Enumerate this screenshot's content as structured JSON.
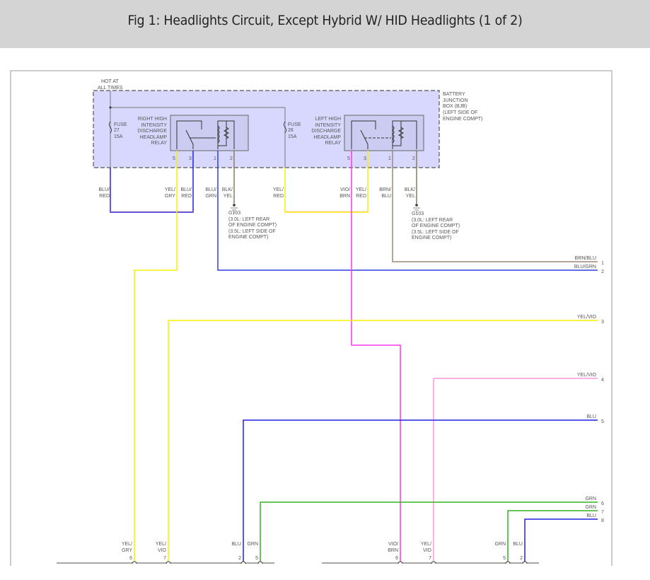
{
  "header": {
    "title": "Fig 1: Headlights Circuit, Except Hybrid W/ HID Headlights (1 of 2)"
  },
  "diagram": {
    "hot_at": [
      "HOT AT",
      "ALL TIMES"
    ],
    "bjb": [
      "BATTERY",
      "JUNCTION",
      "BOX (BJB)",
      "(LEFT SIDE OF",
      "ENGINE COMPT)"
    ],
    "fuse27": [
      "FUSE",
      "27",
      "15A"
    ],
    "fuse26": [
      "FUSE",
      "26",
      "15A"
    ],
    "right_relay": [
      "RIGHT HIGH",
      "INTENSITY",
      "DISCHARGE",
      "HEADLAMP",
      "RELAY"
    ],
    "left_relay": [
      "LEFT HIGH",
      "INTENSITY",
      "DISCHARGE",
      "HEADLAMP",
      "RELAY"
    ],
    "relay_pins": [
      "5",
      "3",
      "1",
      "2"
    ],
    "wire_labels_top": [
      [
        "BLU/",
        "RED"
      ],
      [
        "YEL/",
        "GRY"
      ],
      [
        "BLU/",
        "RED"
      ],
      [
        "BLU/",
        "GRN"
      ],
      [
        "BLK/",
        "YEL"
      ],
      [
        "YEL/",
        "RED"
      ],
      [
        "VIO/",
        "BRN"
      ],
      [
        "YEL/",
        "RED"
      ],
      [
        "BRN/",
        "BLU"
      ],
      [
        "BLK/",
        "YEL"
      ]
    ],
    "ground": [
      "G103",
      "(3.0L: LEFT REAR",
      "OF ENGINE COMPT)",
      "(3.5L: LEFT SIDE OF",
      "ENGINE COMPT)"
    ],
    "right_wires": [
      {
        "label": "BRN/BLU",
        "num": "1",
        "color": "#9b8a78"
      },
      {
        "label": "BLU/GRN",
        "num": "2",
        "color": "#2d3fe0"
      },
      {
        "label": "YEL/VIO",
        "num": "3",
        "color": "#f5f000"
      },
      {
        "label": "YEL/VIO",
        "num": "4",
        "color": "#f5f000"
      },
      {
        "label": "BLU",
        "num": "5",
        "color": "#2020e0"
      },
      {
        "label": "GRN",
        "num": "6",
        "color": "#33b020"
      },
      {
        "label": "GRN",
        "num": "7",
        "color": "#33b020"
      },
      {
        "label": "BLU",
        "num": "8",
        "color": "#2020e0"
      }
    ],
    "bottom_left": [
      {
        "label": [
          "YEL/",
          "GRY"
        ],
        "pin": "6"
      },
      {
        "label": [
          "YEL/",
          "VIO"
        ],
        "pin": "7"
      },
      {
        "label": [
          "BLU",
          ""
        ],
        "pin": "2"
      },
      {
        "label": [
          "GRN",
          ""
        ],
        "pin": "5"
      }
    ],
    "bottom_right": [
      {
        "label": [
          "VIO/",
          "BRN"
        ],
        "pin": "6"
      },
      {
        "label": [
          "YEL/",
          "VIO"
        ],
        "pin": "7"
      },
      {
        "label": [
          "GRN",
          ""
        ],
        "pin": "5"
      },
      {
        "label": [
          "BLU",
          ""
        ],
        "pin": "2"
      }
    ],
    "colors": {
      "box_fill": "#d8d8ff",
      "magenta": "#ff33ee",
      "pink": "#ff99dd",
      "yellow": "#f5f000",
      "blue": "#2020e0",
      "green": "#33b020",
      "brown": "#9b8a78",
      "gray": "#888888"
    }
  }
}
